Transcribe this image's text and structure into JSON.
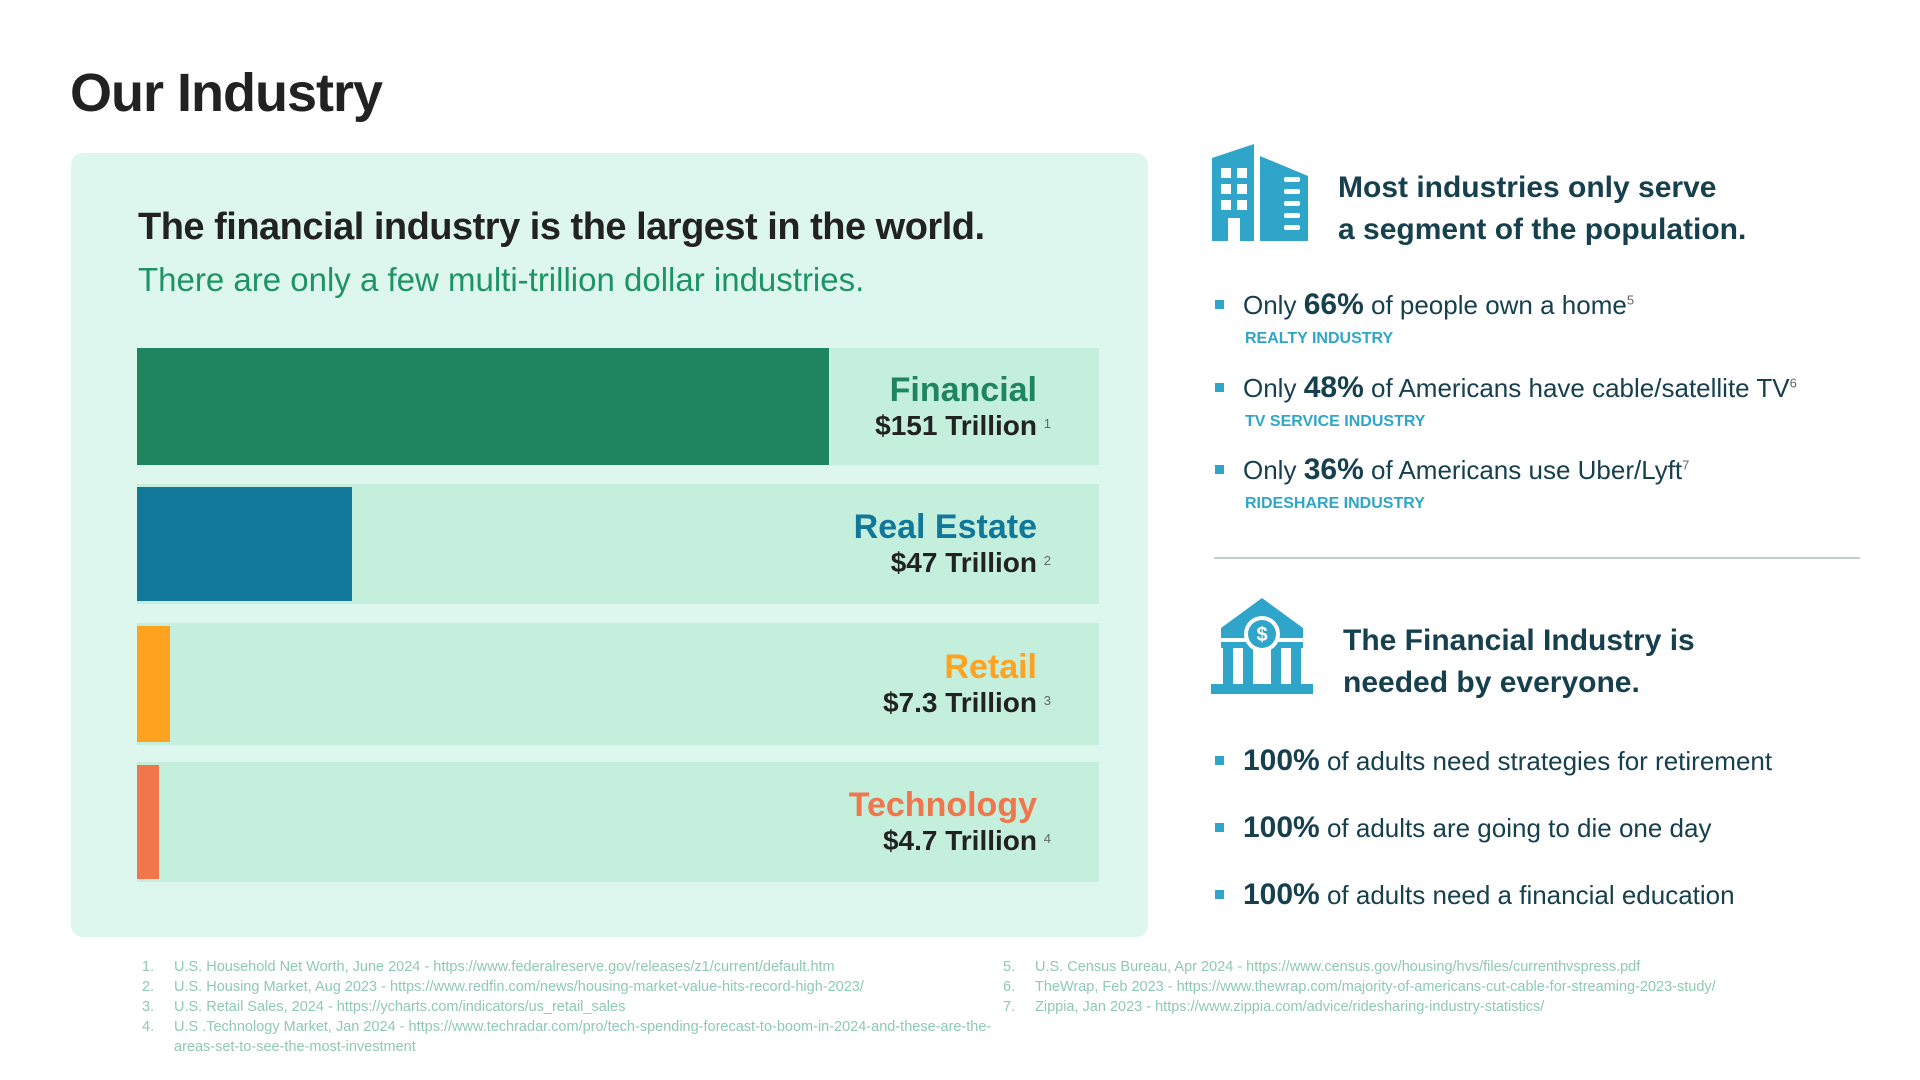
{
  "title": "Our Industry",
  "chart_data": {
    "type": "bar",
    "orientation": "horizontal",
    "title": "The financial industry is the largest in the world.",
    "subtitle": "There are only a few multi-trillion dollar industries.",
    "units": "Trillion USD",
    "xlim": [
      0,
      210
    ],
    "categories": [
      "Financial",
      "Real Estate",
      "Retail",
      "Technology"
    ],
    "values": [
      151,
      47,
      7.3,
      4.7
    ],
    "value_labels": [
      "$151 Trillion",
      "$47 Trillion",
      "$7.3 Trillion",
      "$4.7 Trillion"
    ],
    "footnote_refs": [
      "1",
      "2",
      "3",
      "4"
    ],
    "colors": [
      "#1e8560",
      "#12789a",
      "#ffa220",
      "#f0764b"
    ]
  },
  "segment": {
    "heading_line1": "Most industries only serve",
    "heading_line2": "a segment of the population.",
    "icon": "building-icon",
    "items": [
      {
        "prefix": "Only",
        "stat": "66%",
        "text": "of people own a home",
        "ref": "5",
        "tag": "REALTY INDUSTRY"
      },
      {
        "prefix": "Only",
        "stat": "48%",
        "text": "of Americans have cable/satellite TV",
        "ref": "6",
        "tag": "TV SERVICE INDUSTRY"
      },
      {
        "prefix": "Only",
        "stat": "36%",
        "text": "of Americans use Uber/Lyft",
        "ref": "7",
        "tag": "RIDESHARE INDUSTRY"
      }
    ]
  },
  "everyone": {
    "heading_line1": "The Financial Industry is",
    "heading_line2": "needed by everyone.",
    "icon": "bank-icon",
    "items": [
      {
        "stat": "100%",
        "text": "of adults need strategies for retirement"
      },
      {
        "stat": "100%",
        "text": "of adults are going to die one day"
      },
      {
        "stat": "100%",
        "text": "of adults need a financial education"
      }
    ]
  },
  "footnotes": [
    {
      "n": "1.",
      "text": "U.S. Household Net Worth, June 2024 - https://www.federalreserve.gov/releases/z1/current/default.htm"
    },
    {
      "n": "2.",
      "text": "U.S. Housing Market, Aug 2023 - https://www.redfin.com/news/housing-market-value-hits-record-high-2023/"
    },
    {
      "n": "3.",
      "text": "U.S. Retail Sales, 2024 - https://ycharts.com/indicators/us_retail_sales"
    },
    {
      "n": "4.",
      "text": "U.S .Technology Market, Jan 2024 - https://www.techradar.com/pro/tech-spending-forecast-to-boom-in-2024-and-these-are-the-areas-set-to-see-the-most-investment"
    },
    {
      "n": "5.",
      "text": "U.S. Census Bureau, Apr 2024 - https://www.census.gov/housing/hvs/files/currenthvspress.pdf"
    },
    {
      "n": "6.",
      "text": "TheWrap, Feb 2023 - https://www.thewrap.com/majority-of-americans-cut-cable-for-streaming-2023-study/"
    },
    {
      "n": "7.",
      "text": "Zippia, Jan 2023 - https://www.zippia.com/advice/ridesharing-industry-statistics/"
    }
  ]
}
